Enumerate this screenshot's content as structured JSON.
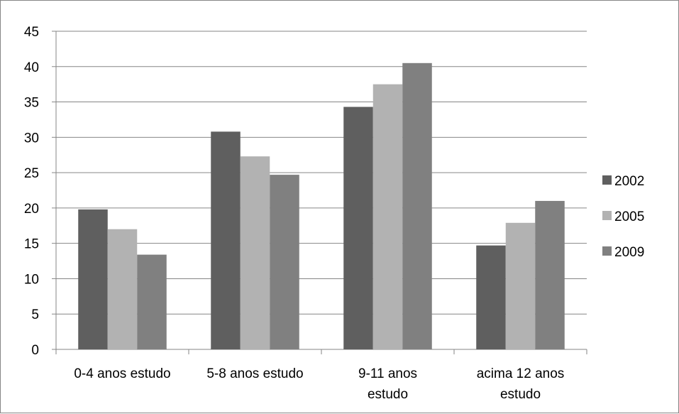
{
  "chart_data": {
    "type": "bar",
    "title": "",
    "xlabel": "",
    "ylabel": "",
    "ylim": [
      0,
      45
    ],
    "ytick_step": 5,
    "grid": true,
    "legend_position": "right",
    "categories": [
      [
        "0-4 anos estudo"
      ],
      [
        "5-8 anos estudo"
      ],
      [
        "9-11 anos",
        "estudo"
      ],
      [
        "acima 12 anos",
        "estudo"
      ]
    ],
    "series": [
      {
        "name": "2002",
        "color": "#5f5f5f",
        "values": [
          19.8,
          30.8,
          34.3,
          14.7
        ]
      },
      {
        "name": "2005",
        "color": "#b2b2b2",
        "values": [
          17.0,
          27.3,
          37.5,
          17.9
        ]
      },
      {
        "name": "2009",
        "color": "#808080",
        "values": [
          13.4,
          24.7,
          40.5,
          21.0
        ]
      }
    ]
  }
}
